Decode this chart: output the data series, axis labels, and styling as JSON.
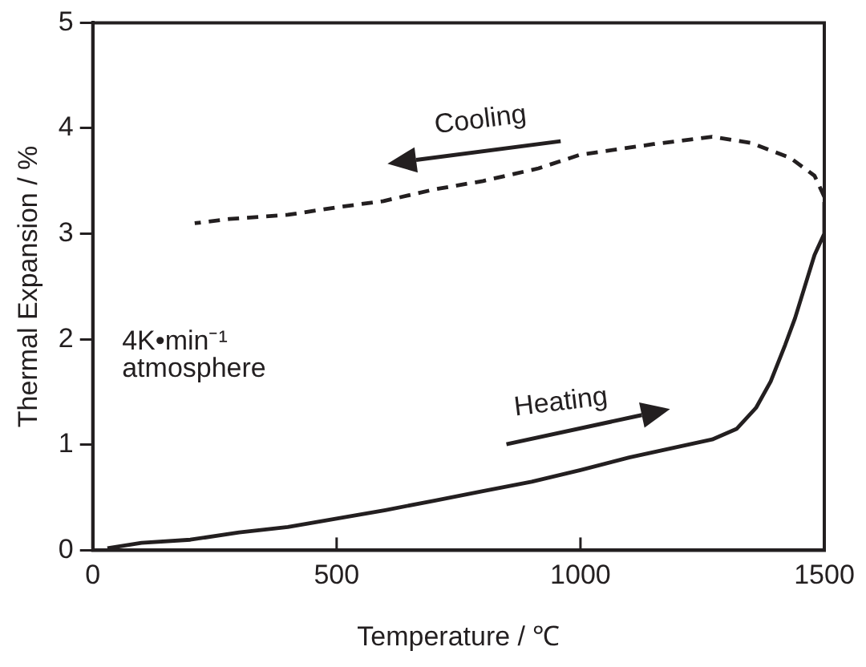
{
  "chart_data": {
    "type": "line",
    "xlabel": "Temperature / ℃",
    "ylabel": "Thermal Expansion / %",
    "x": [
      30,
      100,
      200,
      300,
      400,
      500,
      600,
      700,
      800,
      900,
      1000,
      1100,
      1200,
      1270,
      1320,
      1360,
      1390,
      1420,
      1440,
      1460,
      1480,
      1500,
      1500
    ],
    "series": [
      {
        "color": "#231f20",
        "line_style": "solid",
        "values": [
          0.02,
          0.07,
          0.1,
          0.17,
          0.22,
          0.3,
          0.38,
          0.47,
          0.56,
          0.65,
          0.76,
          0.88,
          0.98,
          1.05,
          1.15,
          1.35,
          1.6,
          1.95,
          2.2,
          2.5,
          2.8,
          3.0,
          3.3
        ]
      },
      {
        "color": "#231f20",
        "line_style": "dashed",
        "x": [
          1500,
          1480,
          1430,
          1350,
          1270,
          1150,
          1000,
          914,
          800,
          700,
          596,
          500,
          400,
          280,
          209
        ],
        "values": [
          3.35,
          3.55,
          3.72,
          3.86,
          3.92,
          3.85,
          3.75,
          3.62,
          3.5,
          3.42,
          3.31,
          3.25,
          3.18,
          3.14,
          3.1
        ]
      }
    ],
    "xlim": [
      0,
      1500
    ],
    "xticks": [
      0,
      500,
      1000,
      1500
    ],
    "ylim": [
      0,
      5
    ],
    "yticks": [
      0,
      1,
      2,
      3,
      4,
      5
    ],
    "grid": false,
    "legend": false,
    "marker": "none",
    "annotations": [
      "Cooling",
      "Heating",
      "4K•min⁻¹\natmosphere"
    ]
  }
}
